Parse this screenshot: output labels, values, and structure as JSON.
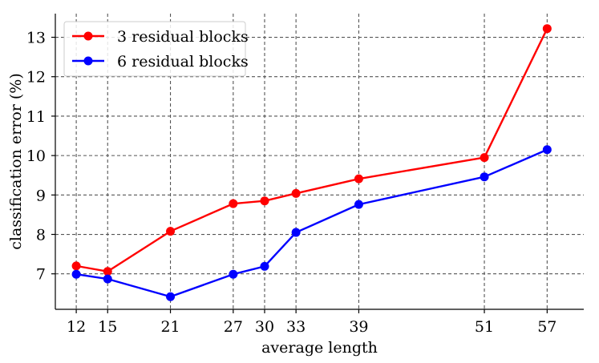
{
  "chart_data": {
    "type": "line",
    "x": [
      12,
      15,
      21,
      27,
      30,
      33,
      39,
      51,
      57
    ],
    "xlabel": "average length",
    "ylabel": "classification error (%)",
    "title": "",
    "ylim": [
      6.1,
      13.6
    ],
    "xlim": [
      10,
      60.5
    ],
    "xticks": [
      12,
      15,
      21,
      27,
      30,
      33,
      39,
      51,
      57
    ],
    "yticks": [
      7,
      8,
      9,
      10,
      11,
      12,
      13
    ],
    "grid": true,
    "legend_position": "top-left",
    "series": [
      {
        "name": "3 residual blocks",
        "color": "#ff0000",
        "values": [
          7.2,
          7.06,
          8.08,
          8.78,
          8.85,
          9.04,
          9.41,
          9.95,
          13.22
        ]
      },
      {
        "name": "6 residual blocks",
        "color": "#0000ff",
        "values": [
          6.99,
          6.87,
          6.42,
          6.99,
          7.19,
          8.05,
          8.76,
          9.46,
          10.15
        ]
      }
    ]
  }
}
